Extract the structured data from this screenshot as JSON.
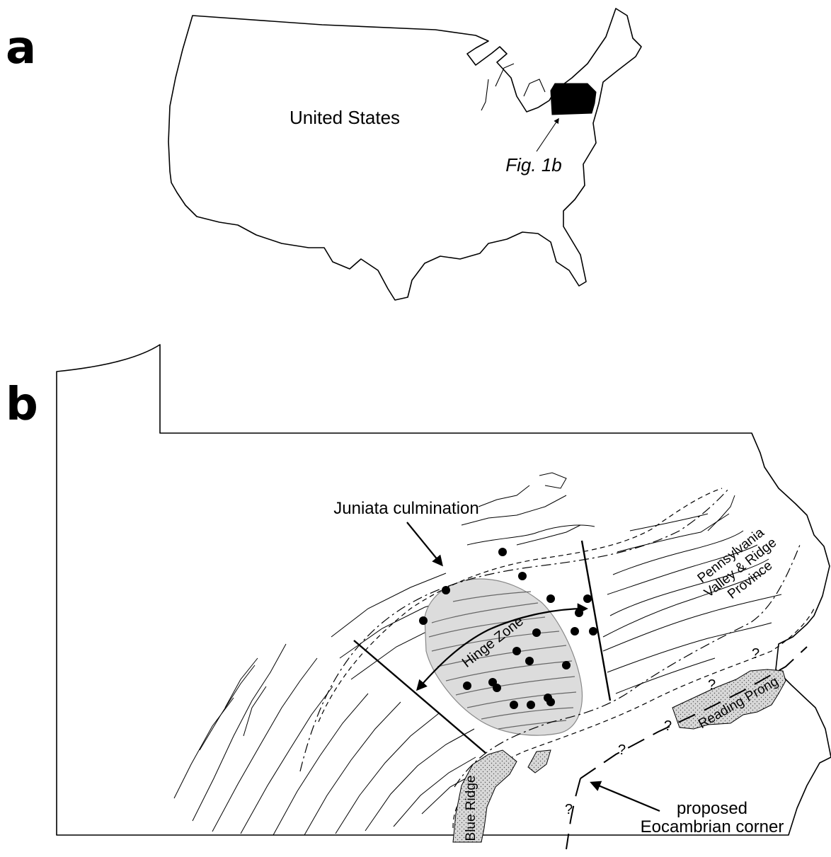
{
  "panel_a": {
    "letter": "a",
    "country_label": "United States",
    "callout_label": "Fig. 1b"
  },
  "panel_b": {
    "letter": "b",
    "juniata_label": "Juniata culmination",
    "hinge_label": "Hinge Zone",
    "province_label_lines": [
      "Pennsylvania",
      "Valley & Ridge",
      "Province"
    ],
    "reading_prong_label": "Reading Prong",
    "blue_ridge_label": "Blue Ridge",
    "corner_label_lines": [
      "proposed",
      "Eocambrian corner"
    ],
    "uncertain_mark": "?",
    "culmination_fill": "#dcdcdc",
    "massif_fill": "#d8d8d8"
  }
}
